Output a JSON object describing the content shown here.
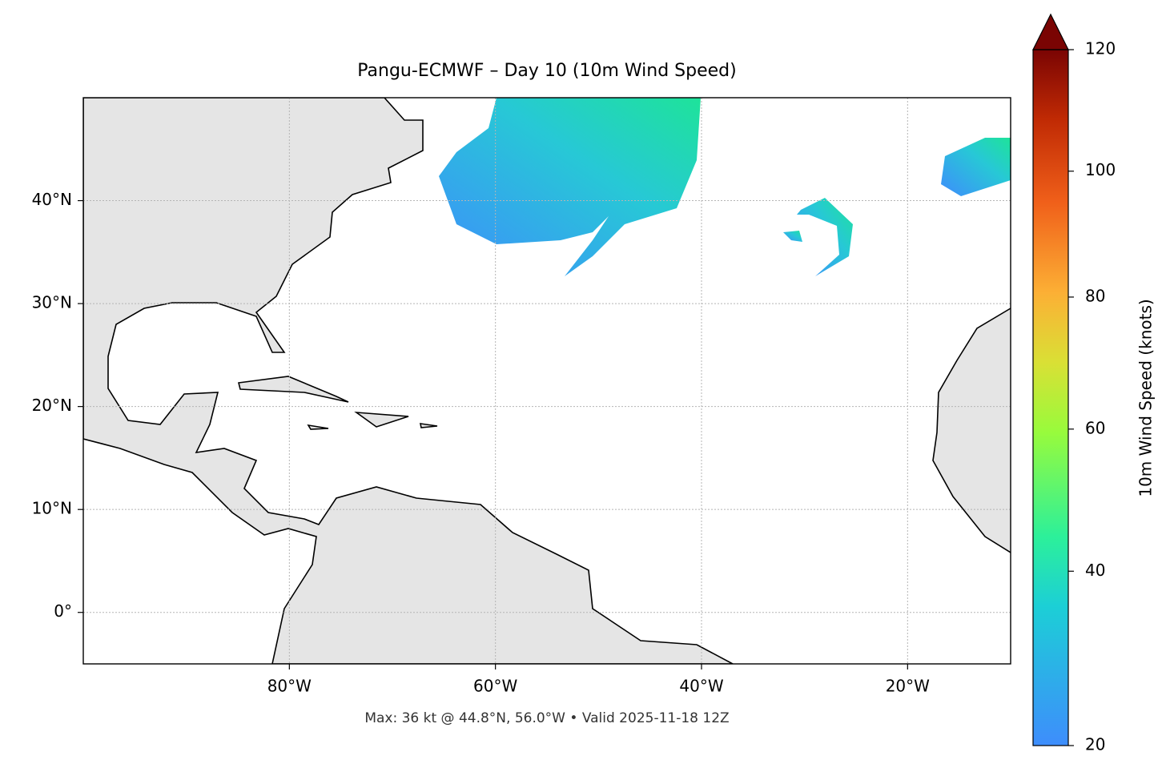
{
  "chart_data": {
    "type": "map",
    "title": "Pangu-ECMWF – Day 10 (10m Wind Speed)",
    "footer": "Max: 36 kt @ 44.8°N, 56.0°W • Valid 2025-11-18 12Z",
    "xlim": [
      -100,
      -10
    ],
    "ylim": [
      -5,
      50
    ],
    "xticks": [
      {
        "value": -80,
        "label": "80°W"
      },
      {
        "value": -60,
        "label": "60°W"
      },
      {
        "value": -40,
        "label": "40°W"
      },
      {
        "value": -20,
        "label": "20°W"
      }
    ],
    "yticks": [
      {
        "value": 0,
        "label": "0°"
      },
      {
        "value": 10,
        "label": "10°N"
      },
      {
        "value": 20,
        "label": "20°N"
      },
      {
        "value": 30,
        "label": "30°N"
      },
      {
        "value": 40,
        "label": "40°N"
      }
    ],
    "grid": true,
    "colorbar": {
      "label": "10m Wind Speed (knots)",
      "lim": [
        20,
        120
      ],
      "ticks": [
        20,
        40,
        60,
        80,
        100,
        120
      ],
      "gamma": 0.86,
      "extend": "max"
    }
  }
}
